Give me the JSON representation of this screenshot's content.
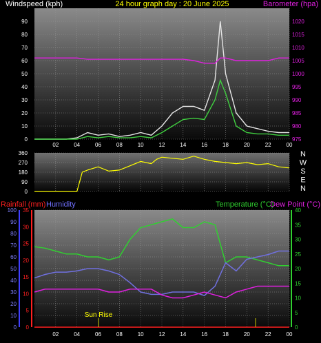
{
  "chart_data": [
    {
      "type": "line",
      "title": "24 hour graph day : 20 June 2025",
      "left_axis_label": "Windspeed (kph)",
      "right_axis_label": "Barometer (hpa)",
      "x_ticks": [
        "02",
        "04",
        "06",
        "08",
        "10",
        "12",
        "14",
        "16",
        "18",
        "20",
        "22",
        "00"
      ],
      "y_left_ticks": [
        "0",
        "10",
        "20",
        "30",
        "40",
        "50",
        "60",
        "70",
        "80",
        "90"
      ],
      "y_left_range": [
        0,
        100
      ],
      "y_right_ticks": [
        "975",
        "980",
        "985",
        "990",
        "995",
        "1000",
        "1005",
        "1010",
        "1015",
        "1020"
      ],
      "y_right_range": [
        975,
        1025
      ],
      "grid": true,
      "hours": [
        0,
        1,
        2,
        3,
        4,
        5,
        6,
        7,
        8,
        9,
        10,
        11,
        12,
        13,
        14,
        15,
        16,
        17,
        17.5,
        18,
        19,
        20,
        21,
        22,
        23,
        24
      ],
      "series": [
        {
          "color": "#e6e6e6",
          "values": [
            0,
            0,
            0,
            0,
            1,
            5,
            3,
            4,
            2,
            3,
            5,
            3,
            10,
            20,
            25,
            25,
            22,
            45,
            90,
            50,
            20,
            10,
            8,
            6,
            5,
            5
          ]
        },
        {
          "color": "#40d040",
          "values": [
            0,
            0,
            0,
            0,
            0,
            2,
            1,
            2,
            1,
            1,
            2,
            1,
            5,
            10,
            15,
            16,
            15,
            30,
            45,
            35,
            10,
            5,
            4,
            4,
            3,
            3
          ]
        },
        {
          "color": "#e020e0",
          "values": [
            1006,
            1006,
            1006,
            1006,
            1006,
            1005.5,
            1005.5,
            1005.5,
            1005.5,
            1005.5,
            1005.5,
            1005.5,
            1005.5,
            1005.5,
            1005.5,
            1005,
            1004,
            1004,
            1006,
            1006,
            1005,
            1005,
            1005,
            1005,
            1006,
            1006
          ]
        }
      ]
    },
    {
      "type": "scatter",
      "left_ticks": [
        "0",
        "90",
        "180",
        "270",
        "360"
      ],
      "y_range": [
        0,
        360
      ],
      "direction_labels": [
        "N",
        "W",
        "S",
        "E",
        "N"
      ],
      "color": "#ffff00",
      "x_ticks": [],
      "series": [
        {
          "hours": [
            0,
            1,
            2,
            3,
            4,
            4.5,
            5,
            6,
            7,
            8,
            9,
            10,
            11,
            11.5,
            12,
            13,
            14,
            15,
            16,
            17,
            18,
            19,
            20,
            21,
            22,
            23,
            24
          ],
          "values": [
            0,
            0,
            0,
            0,
            0,
            180,
            200,
            230,
            190,
            200,
            240,
            280,
            260,
            300,
            320,
            310,
            300,
            330,
            300,
            280,
            270,
            260,
            270,
            250,
            260,
            230,
            220
          ]
        }
      ]
    },
    {
      "type": "line",
      "rainfall_label": "Rainfall (mm)",
      "humidity_label": "Humidity",
      "temperature_label": "Temperature (°C)",
      "dewpoint_label": "Dew Point (°C)",
      "annotation": "Sun Rise",
      "humidity_ticks": [
        "0",
        "10",
        "20",
        "30",
        "40",
        "50",
        "60",
        "70",
        "80",
        "90",
        "100"
      ],
      "rain_ticks": [
        "0",
        "5",
        "10",
        "15",
        "20",
        "25",
        "30",
        "35"
      ],
      "rain_range": [
        0,
        35
      ],
      "temp_ticks": [
        "0",
        "5",
        "10",
        "15",
        "20",
        "25",
        "30",
        "35",
        "40"
      ],
      "temp_range": [
        0,
        40
      ],
      "x_ticks": [
        "02",
        "04",
        "06",
        "08",
        "10",
        "12",
        "14",
        "16",
        "18",
        "20",
        "22",
        "00"
      ],
      "hours": [
        0,
        1,
        2,
        3,
        4,
        5,
        6,
        7,
        8,
        9,
        10,
        11,
        12,
        13,
        14,
        15,
        16,
        17,
        18,
        19,
        20,
        21,
        22,
        23,
        24
      ],
      "series": [
        {
          "name": "Temperature (°C)",
          "color": "#30d030",
          "values": [
            27.5,
            27,
            26,
            25,
            25,
            24,
            24,
            23,
            24,
            30,
            34,
            35,
            36,
            37,
            34,
            34,
            36,
            35,
            22,
            24,
            24,
            23,
            22,
            21,
            21
          ]
        },
        {
          "name": "Humidity",
          "color": "#7070e0",
          "values": [
            42,
            45,
            47,
            47,
            48,
            50,
            50,
            48,
            45,
            38,
            30,
            28,
            28,
            30,
            30,
            30,
            27,
            35,
            55,
            48,
            58,
            60,
            62,
            65,
            65
          ]
        },
        {
          "name": "Dew Point (°C)",
          "color": "#e020e0",
          "values": [
            12,
            13,
            13,
            13,
            13,
            13,
            13,
            12,
            12,
            13,
            13,
            13,
            11,
            10,
            10,
            11,
            12,
            11,
            10,
            12,
            13,
            14,
            14,
            14,
            14
          ]
        },
        {
          "name": "Rainfall (mm)",
          "color": "#ff2020",
          "values": [
            0,
            0,
            0,
            0,
            0,
            0,
            0,
            0,
            0,
            0,
            0,
            0,
            0,
            0,
            0,
            0,
            0,
            0,
            0,
            0,
            0,
            0,
            0,
            0,
            0
          ]
        }
      ]
    }
  ]
}
